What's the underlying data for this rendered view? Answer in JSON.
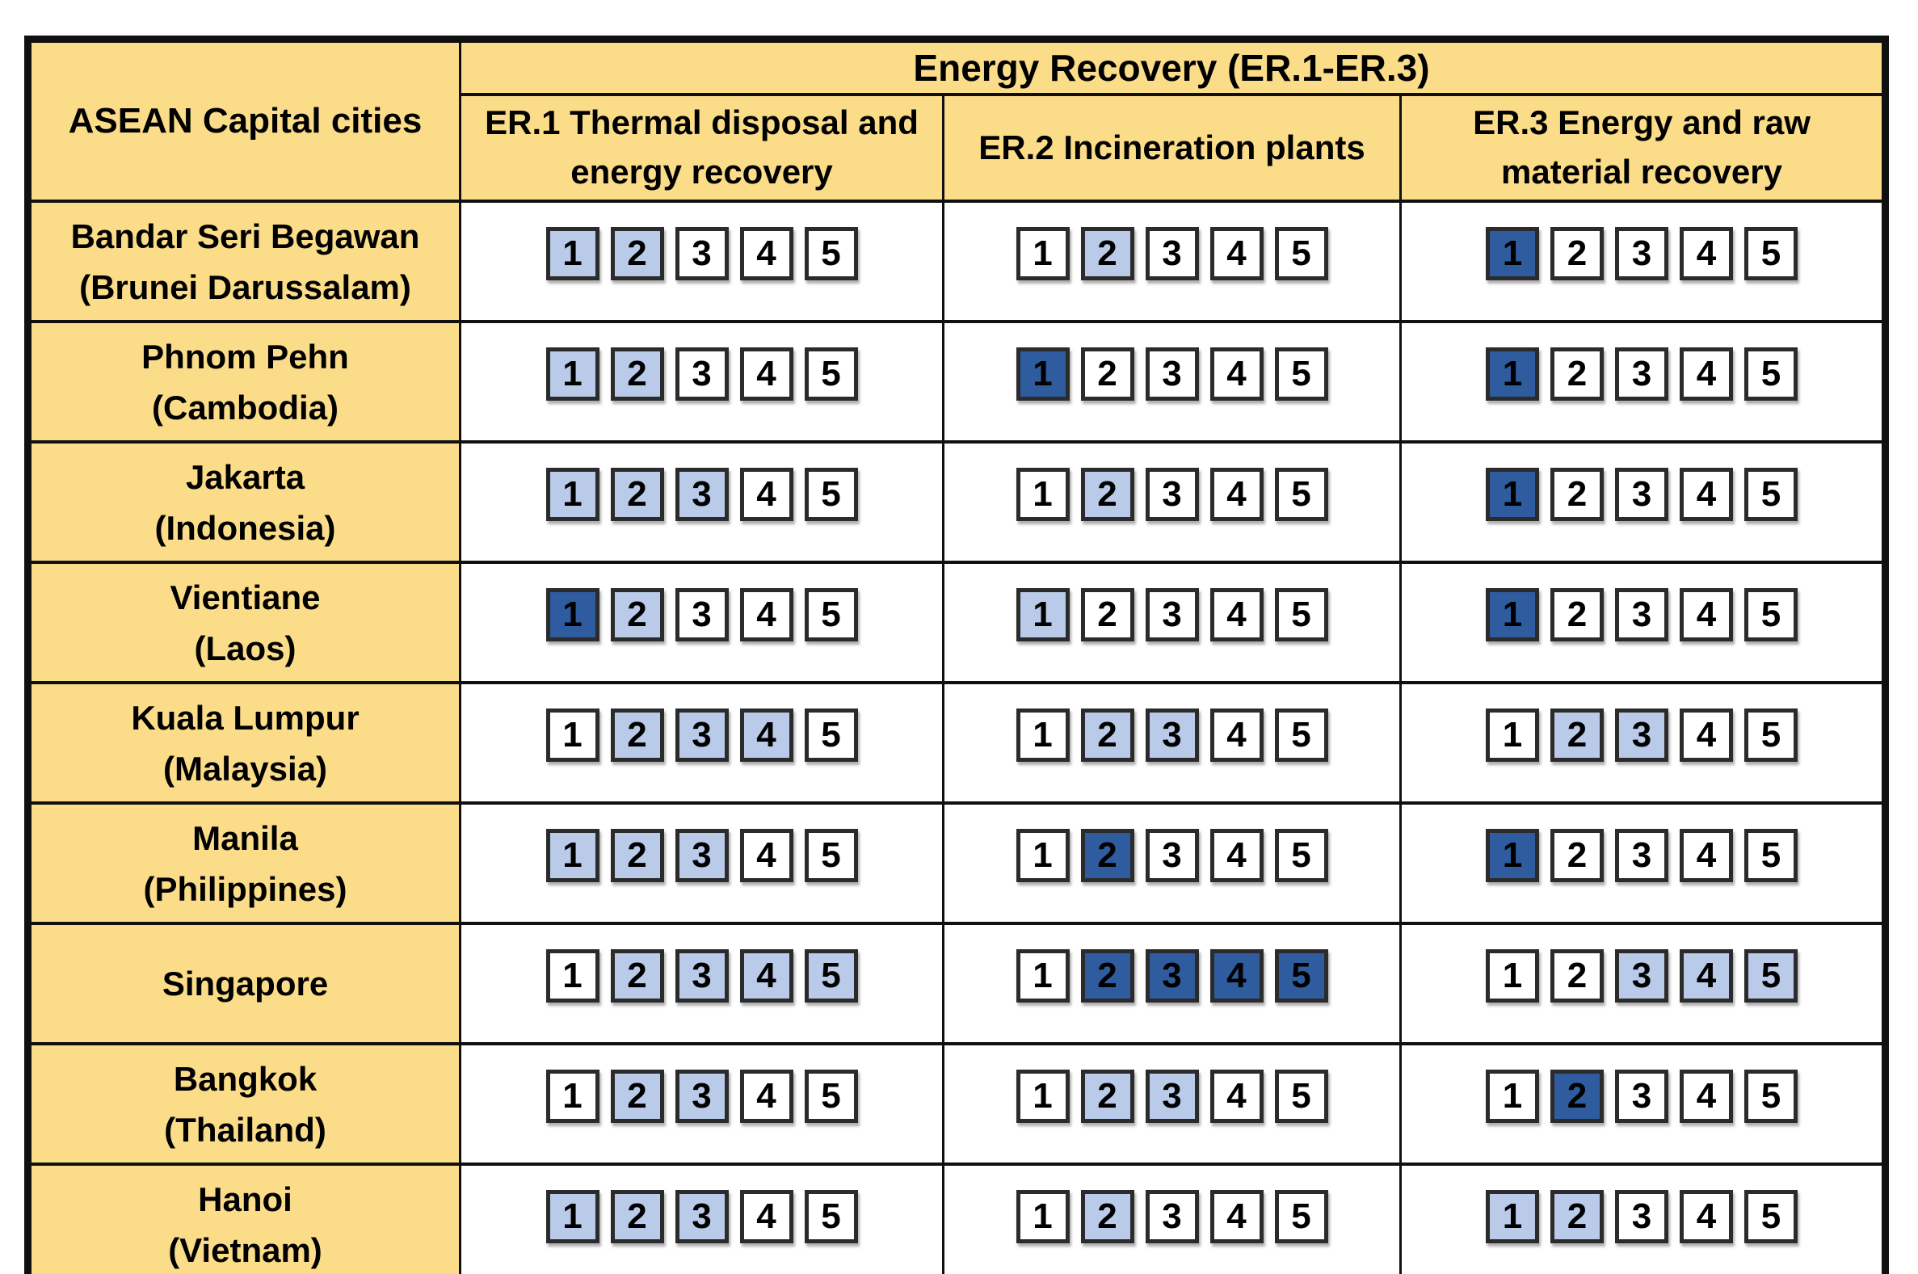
{
  "colors": {
    "header-bg": "#FBDC88",
    "grid": "#101010",
    "box-border": "#2B2B2B",
    "box-light": "#B9CBE9",
    "box-dark": "#2E5C9F",
    "box-none": "#FFFFFF",
    "text": "#000000"
  },
  "chart_data": {
    "type": "table",
    "title": "Energy Recovery (ER.1-ER.3)",
    "row_header": "ASEAN Capital cities",
    "columns": [
      "ER.1 Thermal disposal and energy recovery",
      "ER.2 Incineration plants",
      "ER.3 Energy and raw material recovery"
    ],
    "scale": [
      1,
      2,
      3,
      4,
      5
    ],
    "fill_levels": [
      "none",
      "light",
      "dark"
    ],
    "rows": [
      {
        "city": "Bandar Seri Begawan",
        "country": "(Brunei Darussalam)",
        "ER1": [
          "light",
          "light",
          "none",
          "none",
          "none"
        ],
        "ER2": [
          "none",
          "light",
          "none",
          "none",
          "none"
        ],
        "ER3": [
          "dark",
          "none",
          "none",
          "none",
          "none"
        ]
      },
      {
        "city": "Phnom Pehn",
        "country": "(Cambodia)",
        "ER1": [
          "light",
          "light",
          "none",
          "none",
          "none"
        ],
        "ER2": [
          "dark",
          "none",
          "none",
          "none",
          "none"
        ],
        "ER3": [
          "dark",
          "none",
          "none",
          "none",
          "none"
        ]
      },
      {
        "city": "Jakarta",
        "country": "(Indonesia)",
        "ER1": [
          "light",
          "light",
          "light",
          "none",
          "none"
        ],
        "ER2": [
          "none",
          "light",
          "none",
          "none",
          "none"
        ],
        "ER3": [
          "dark",
          "none",
          "none",
          "none",
          "none"
        ]
      },
      {
        "city": "Vientiane",
        "country": "(Laos)",
        "ER1": [
          "dark",
          "light",
          "none",
          "none",
          "none"
        ],
        "ER2": [
          "light",
          "none",
          "none",
          "none",
          "none"
        ],
        "ER3": [
          "dark",
          "none",
          "none",
          "none",
          "none"
        ]
      },
      {
        "city": "Kuala Lumpur",
        "country": "(Malaysia)",
        "ER1": [
          "none",
          "light",
          "light",
          "light",
          "none"
        ],
        "ER2": [
          "none",
          "light",
          "light",
          "none",
          "none"
        ],
        "ER3": [
          "none",
          "light",
          "light",
          "none",
          "none"
        ]
      },
      {
        "city": "Manila",
        "country": "(Philippines)",
        "ER1": [
          "light",
          "light",
          "light",
          "none",
          "none"
        ],
        "ER2": [
          "none",
          "dark",
          "none",
          "none",
          "none"
        ],
        "ER3": [
          "dark",
          "none",
          "none",
          "none",
          "none"
        ]
      },
      {
        "city": "Singapore",
        "country": "",
        "ER1": [
          "none",
          "light",
          "light",
          "light",
          "light"
        ],
        "ER2": [
          "none",
          "dark",
          "dark",
          "dark",
          "dark"
        ],
        "ER3": [
          "none",
          "none",
          "light",
          "light",
          "light"
        ]
      },
      {
        "city": "Bangkok",
        "country": "(Thailand)",
        "ER1": [
          "none",
          "light",
          "light",
          "none",
          "none"
        ],
        "ER2": [
          "none",
          "light",
          "light",
          "none",
          "none"
        ],
        "ER3": [
          "none",
          "dark",
          "none",
          "none",
          "none"
        ]
      },
      {
        "city": "Hanoi",
        "country": "(Vietnam)",
        "ER1": [
          "light",
          "light",
          "light",
          "none",
          "none"
        ],
        "ER2": [
          "none",
          "light",
          "none",
          "none",
          "none"
        ],
        "ER3": [
          "light",
          "light",
          "none",
          "none",
          "none"
        ]
      }
    ]
  }
}
